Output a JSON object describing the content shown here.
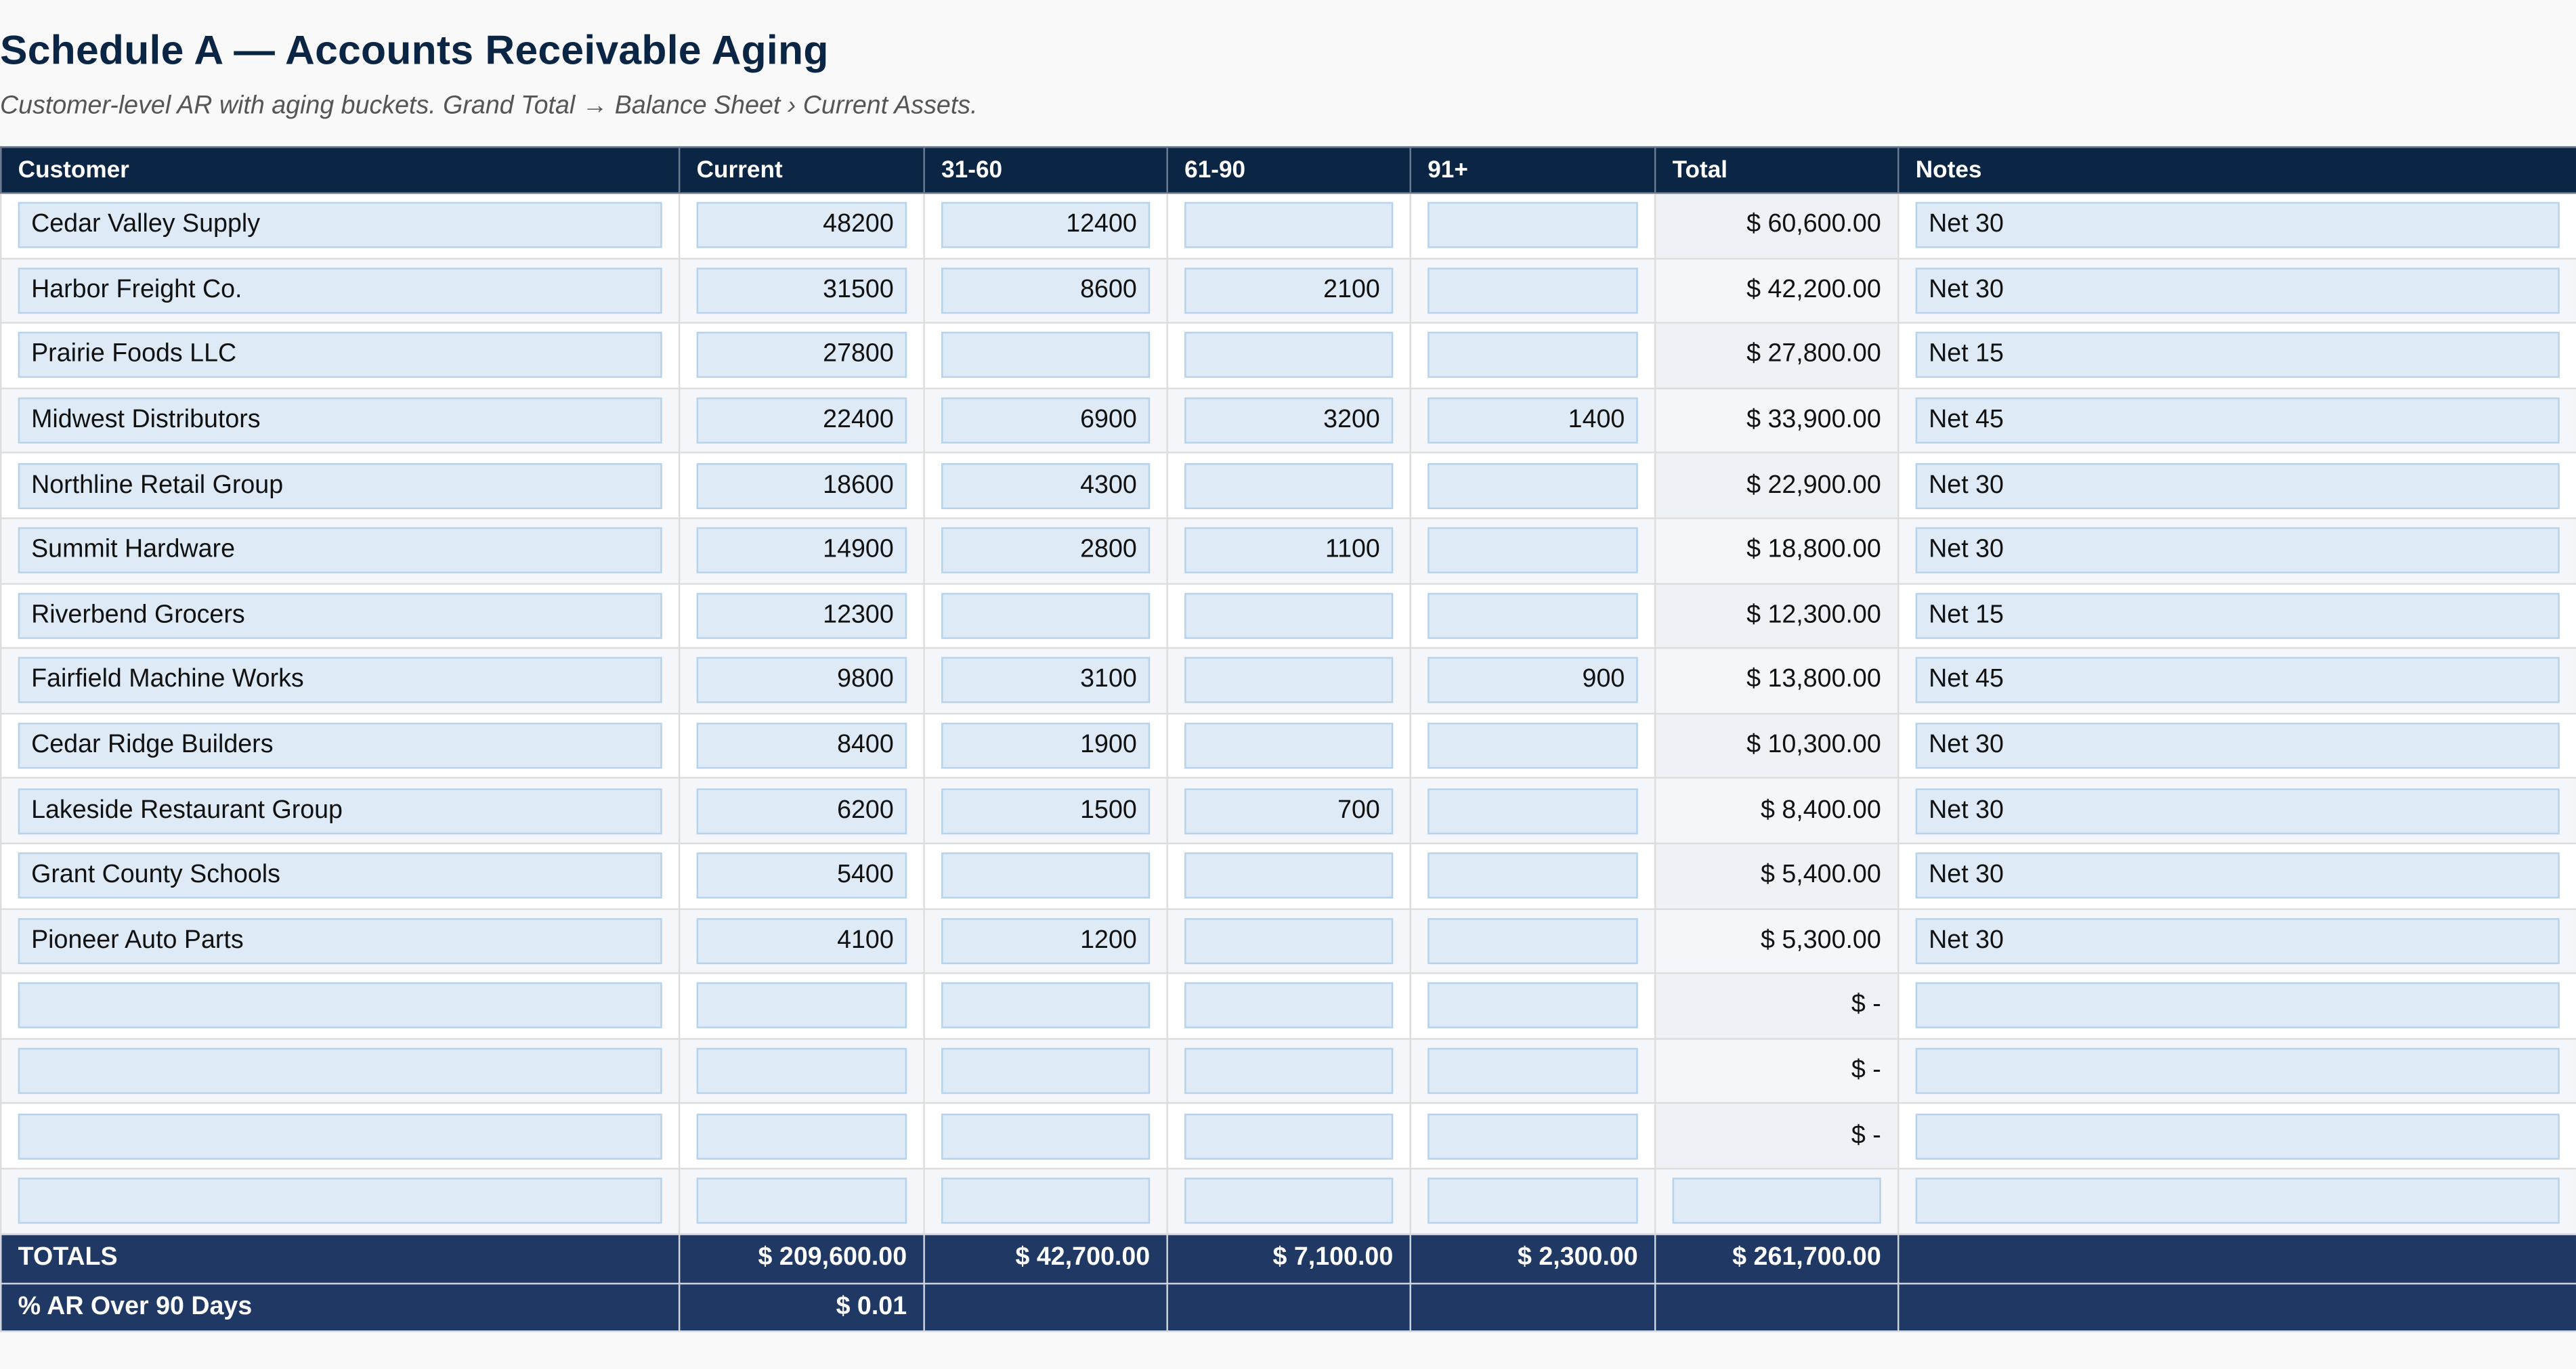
{
  "page": {
    "title": "Schedule A — Accounts Receivable Aging",
    "subtitle": "Customer-level AR with aging buckets. Grand Total → Balance Sheet › Current Assets."
  },
  "table": {
    "headers": [
      "Customer",
      "Current",
      "31-60",
      "61-90",
      "91+",
      "Total",
      "Notes"
    ],
    "rows": [
      {
        "customer": "Cedar Valley Supply",
        "current": "48200",
        "d31_60": "12400",
        "d61_90": "",
        "d91p": "",
        "total": "$ 60,600.00",
        "notes": "Net 30"
      },
      {
        "customer": "Harbor Freight Co.",
        "current": "31500",
        "d31_60": "8600",
        "d61_90": "2100",
        "d91p": "",
        "total": "$ 42,200.00",
        "notes": "Net 30"
      },
      {
        "customer": "Prairie Foods LLC",
        "current": "27800",
        "d31_60": "",
        "d61_90": "",
        "d91p": "",
        "total": "$ 27,800.00",
        "notes": "Net 15"
      },
      {
        "customer": "Midwest Distributors",
        "current": "22400",
        "d31_60": "6900",
        "d61_90": "3200",
        "d91p": "1400",
        "total": "$ 33,900.00",
        "notes": "Net 45"
      },
      {
        "customer": "Northline Retail Group",
        "current": "18600",
        "d31_60": "4300",
        "d61_90": "",
        "d91p": "",
        "total": "$ 22,900.00",
        "notes": "Net 30"
      },
      {
        "customer": "Summit Hardware",
        "current": "14900",
        "d31_60": "2800",
        "d61_90": "1100",
        "d91p": "",
        "total": "$ 18,800.00",
        "notes": "Net 30"
      },
      {
        "customer": "Riverbend Grocers",
        "current": "12300",
        "d31_60": "",
        "d61_90": "",
        "d91p": "",
        "total": "$ 12,300.00",
        "notes": "Net 15"
      },
      {
        "customer": "Fairfield Machine Works",
        "current": "9800",
        "d31_60": "3100",
        "d61_90": "",
        "d91p": "900",
        "total": "$ 13,800.00",
        "notes": "Net 45"
      },
      {
        "customer": "Cedar Ridge Builders",
        "current": "8400",
        "d31_60": "1900",
        "d61_90": "",
        "d91p": "",
        "total": "$ 10,300.00",
        "notes": "Net 30"
      },
      {
        "customer": "Lakeside Restaurant Group",
        "current": "6200",
        "d31_60": "1500",
        "d61_90": "700",
        "d91p": "",
        "total": "$ 8,400.00",
        "notes": "Net 30"
      },
      {
        "customer": "Grant County Schools",
        "current": "5400",
        "d31_60": "",
        "d61_90": "",
        "d91p": "",
        "total": "$ 5,400.00",
        "notes": "Net 30"
      },
      {
        "customer": "Pioneer Auto Parts",
        "current": "4100",
        "d31_60": "1200",
        "d61_90": "",
        "d91p": "",
        "total": "$ 5,300.00",
        "notes": "Net 30"
      },
      {
        "customer": "",
        "current": "",
        "d31_60": "",
        "d61_90": "",
        "d91p": "",
        "total": "$ -",
        "notes": ""
      },
      {
        "customer": "",
        "current": "",
        "d31_60": "",
        "d61_90": "",
        "d91p": "",
        "total": "$ -",
        "notes": ""
      },
      {
        "customer": "",
        "current": "",
        "d31_60": "",
        "d61_90": "",
        "d91p": "",
        "total": "$ -",
        "notes": ""
      },
      {
        "customer": "",
        "current": "",
        "d31_60": "",
        "d61_90": "",
        "d91p": "",
        "total": "",
        "notes": "",
        "total_editable": true
      }
    ],
    "totals": {
      "label": "TOTALS",
      "current": "$ 209,600.00",
      "d31_60": "$ 42,700.00",
      "d61_90": "$ 7,100.00",
      "d91p": "$ 2,300.00",
      "total": "$ 261,700.00",
      "notes": ""
    },
    "pct_over_90": {
      "label": "% AR Over 90 Days",
      "value": "$ 0.01"
    }
  },
  "colors": {
    "header_bg": "#0b2545",
    "footer_bg": "#1f3864",
    "input_bg": "#deeaf6",
    "input_border": "#b7d3ec",
    "title": "#0b2545"
  }
}
